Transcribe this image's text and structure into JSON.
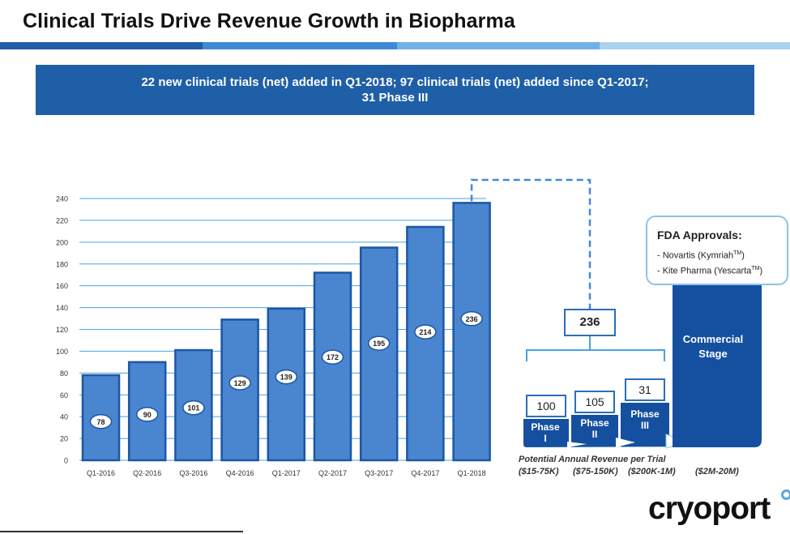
{
  "header": {
    "title": "Clinical Trials Drive Revenue Growth in Biopharma"
  },
  "banner": {
    "line1": "22 new clinical trials (net) added in Q1-2018; 97 clinical trials (net) added since Q1-2017;",
    "line2": "31 Phase III"
  },
  "colors": {
    "bar_fill": "#4a86cf",
    "bar_stroke": "#1c56a6",
    "gridline": "#4aa3df",
    "dark_blue": "#1550a0",
    "light_blue": "#6fb3e6"
  },
  "chart_data": {
    "type": "bar",
    "categories": [
      "Q1-2016",
      "Q2-2016",
      "Q3-2016",
      "Q4-2016",
      "Q1-2017",
      "Q2-2017",
      "Q3-2017",
      "Q4-2017",
      "Q1-2018"
    ],
    "values": [
      78,
      90,
      101,
      129,
      139,
      172,
      195,
      214,
      236
    ],
    "yticks": [
      0,
      20,
      40,
      60,
      80,
      100,
      120,
      140,
      160,
      180,
      200,
      220,
      240
    ],
    "ylim": [
      0,
      240
    ],
    "grid": true,
    "title": "",
    "xlabel": "",
    "ylabel": ""
  },
  "breakdown": {
    "total": "236",
    "phases": [
      {
        "count": "100",
        "label1": "Phase",
        "label2": "I"
      },
      {
        "count": "105",
        "label1": "Phase",
        "label2": "II"
      },
      {
        "count": "31",
        "label1": "Phase",
        "label2": "III"
      }
    ],
    "commercial_line1": "Commercial",
    "commercial_line2": "Stage"
  },
  "fda": {
    "title": "FDA Approvals:",
    "item1": "- Novartis (Kymriah",
    "item1_tm": "TM",
    "item1_end": ")",
    "item2": "- Kite Pharma (Yescarta",
    "item2_tm": "TM",
    "item2_end": ")"
  },
  "revenue": {
    "caption": "Potential Annual Revenue per Trial",
    "ranges": [
      "($15-75K)",
      "($75-150K)",
      "($200K-1M)",
      "($2M-20M)"
    ]
  },
  "logo": {
    "text": "cryoport"
  }
}
